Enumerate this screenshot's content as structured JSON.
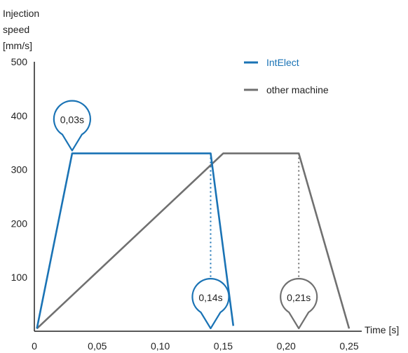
{
  "chart_data": {
    "type": "line",
    "title": "",
    "ylabel_lines": [
      "Injection",
      "speed",
      "[mm/s]"
    ],
    "xlabel": "Time [s]",
    "xlim": [
      0,
      0.26
    ],
    "ylim": [
      0,
      500
    ],
    "x_ticks": [
      {
        "value": 0,
        "label": "0"
      },
      {
        "value": 0.05,
        "label": "0,05"
      },
      {
        "value": 0.1,
        "label": "0,10"
      },
      {
        "value": 0.15,
        "label": "0,15"
      },
      {
        "value": 0.2,
        "label": "0,20"
      },
      {
        "value": 0.25,
        "label": "0,25"
      }
    ],
    "y_ticks": [
      {
        "value": 100,
        "label": "100"
      },
      {
        "value": 200,
        "label": "200"
      },
      {
        "value": 300,
        "label": "300"
      },
      {
        "value": 400,
        "label": "400"
      },
      {
        "value": 500,
        "label": "500"
      }
    ],
    "grid": false,
    "legend_position": "top-right",
    "series": [
      {
        "name": "IntElect",
        "color": "#1a73b5",
        "points": [
          [
            0.002,
            5
          ],
          [
            0.03,
            330
          ],
          [
            0.14,
            330
          ],
          [
            0.158,
            10
          ]
        ]
      },
      {
        "name": "other machine",
        "color": "#707070",
        "points": [
          [
            0.002,
            5
          ],
          [
            0.15,
            330
          ],
          [
            0.21,
            330
          ],
          [
            0.25,
            5
          ]
        ]
      }
    ],
    "annotations": [
      {
        "label": "0,03s",
        "x": 0.03,
        "y": 330,
        "pointer": "down",
        "series": 0
      },
      {
        "label": "0,14s",
        "x": 0.14,
        "y": 0,
        "pointer": "down",
        "series": 0,
        "dotted_from": 330
      },
      {
        "label": "0,21s",
        "x": 0.21,
        "y": 0,
        "pointer": "down",
        "series": 1,
        "dotted_from": 330
      }
    ]
  }
}
